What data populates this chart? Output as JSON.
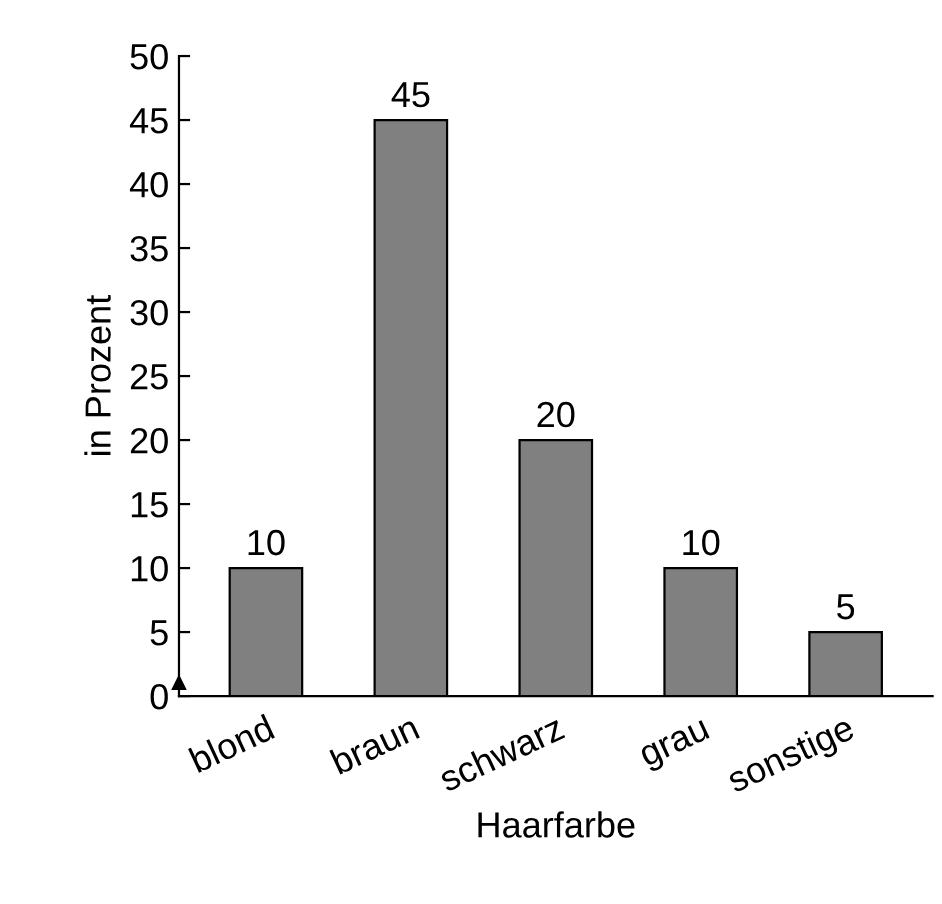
{
  "chart_data": {
    "type": "bar",
    "xlabel": "Haarfarbe",
    "ylabel": "in Prozent",
    "categories": [
      "blond",
      "braun",
      "schwarz",
      "grau",
      "sonstige"
    ],
    "values": [
      10,
      45,
      20,
      10,
      5
    ],
    "color": "#808080",
    "ylim": [
      0,
      50
    ],
    "yticks": [
      0,
      5,
      10,
      15,
      20,
      25,
      30,
      35,
      40,
      45,
      50
    ],
    "data_labels": true,
    "grid": false,
    "legend": false
  }
}
